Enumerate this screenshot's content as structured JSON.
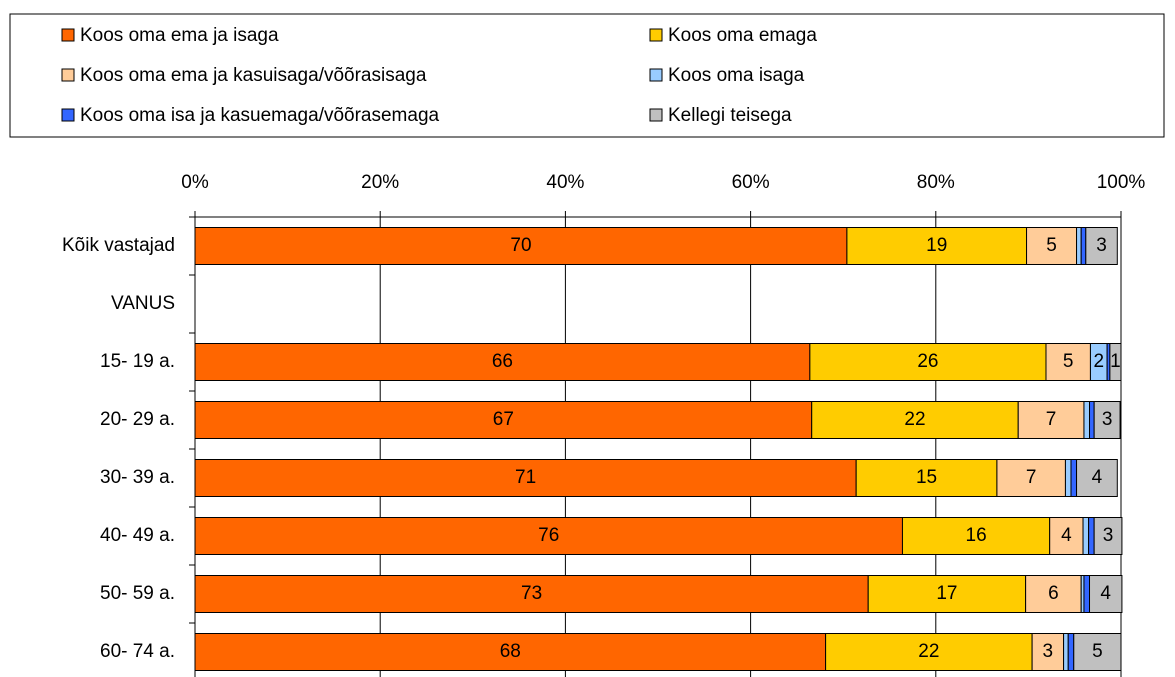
{
  "chart_data": {
    "type": "stacked_bar_horizontal",
    "categories": [
      "Kõik vastajad",
      "VANUS",
      "15- 19 a.",
      "20- 29 a.",
      "30- 39 a.",
      "40- 49 a.",
      "50- 59 a.",
      "60- 74 a."
    ],
    "series": [
      {
        "name": "Koos oma ema ja isaga",
        "color": "#ff6600",
        "values": [
          70.4,
          null,
          66.4,
          66.6,
          71.4,
          76.4,
          72.7,
          68.1
        ],
        "value_labels": [
          "70",
          null,
          "66",
          "67",
          "71",
          "76",
          "73",
          "68"
        ]
      },
      {
        "name": "Koos oma emaga",
        "color": "#ffcc00",
        "values": [
          19.4,
          null,
          25.5,
          22.3,
          15.2,
          15.9,
          17.0,
          22.3
        ],
        "value_labels": [
          "19",
          null,
          "26",
          "22",
          "15",
          "16",
          "17",
          "22"
        ]
      },
      {
        "name": "Koos oma ema ja kasuisaga/võõrasisaga",
        "color": "#ffcc99",
        "values": [
          5.4,
          null,
          4.8,
          7.1,
          7.4,
          3.6,
          6.0,
          3.4
        ],
        "value_labels": [
          "5",
          null,
          "5",
          "7",
          "7",
          "4",
          "6",
          "3"
        ]
      },
      {
        "name": "Koos oma isaga",
        "color": "#99ccff",
        "values": [
          0.5,
          null,
          1.8,
          0.6,
          0.6,
          0.6,
          0.3,
          0.5
        ],
        "value_labels": [
          null,
          null,
          "2",
          null,
          null,
          null,
          null,
          null
        ]
      },
      {
        "name": "Koos oma isa ja kasuemaga/võõrasemaga",
        "color": "#3366ff",
        "values": [
          0.5,
          null,
          0.3,
          0.5,
          0.6,
          0.6,
          0.6,
          0.6
        ],
        "value_labels": [
          null,
          null,
          null,
          null,
          null,
          null,
          null,
          null
        ]
      },
      {
        "name": "Kellegi teisega",
        "color": "#c0c0c0",
        "values": [
          3.4,
          null,
          1.2,
          2.8,
          4.4,
          3.0,
          3.5,
          5.1
        ],
        "value_labels": [
          "3",
          null,
          "1",
          "3",
          "4",
          "3",
          "4",
          "5"
        ]
      }
    ],
    "xlim": [
      0,
      100
    ],
    "xticks": [
      {
        "value": 0,
        "label": "0%"
      },
      {
        "value": 20,
        "label": "20%"
      },
      {
        "value": 40,
        "label": "40%"
      },
      {
        "value": 60,
        "label": "60%"
      },
      {
        "value": 80,
        "label": "80%"
      },
      {
        "value": 100,
        "label": "100%"
      }
    ],
    "grid": true
  }
}
